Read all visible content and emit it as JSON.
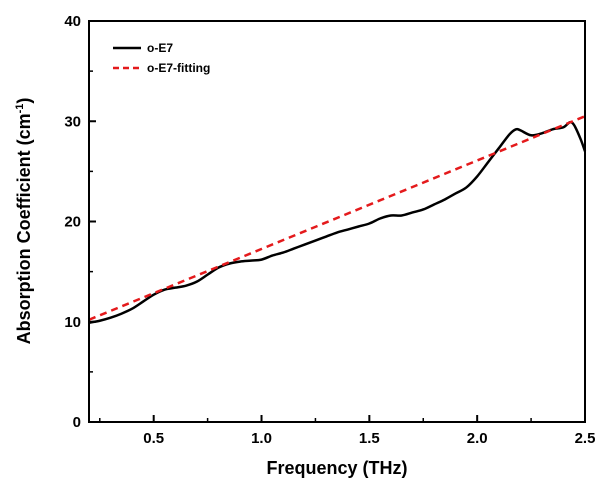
{
  "chart_data": {
    "type": "line",
    "xlabel": "Frequency (THz)",
    "ylabel_main": "Absorption Coefficient (cm",
    "ylabel_sup": "-1",
    "ylabel_close": ")",
    "xlim": [
      0.2,
      2.5
    ],
    "ylim": [
      0,
      40
    ],
    "x_ticks": [
      0.5,
      1.0,
      1.5,
      2.0,
      2.5
    ],
    "x_tick_labels": [
      "0.5",
      "1.0",
      "1.5",
      "2.0",
      "2.5"
    ],
    "y_ticks": [
      0,
      10,
      20,
      30,
      40
    ],
    "y_tick_labels": [
      "0",
      "10",
      "20",
      "30",
      "40"
    ],
    "grid": false,
    "legend_position": "top-left",
    "series": [
      {
        "name": "o-E7",
        "style": "solid",
        "color": "#000000",
        "x": [
          0.2,
          0.25,
          0.3,
          0.35,
          0.4,
          0.45,
          0.5,
          0.55,
          0.6,
          0.65,
          0.7,
          0.75,
          0.8,
          0.85,
          0.9,
          0.95,
          1.0,
          1.05,
          1.1,
          1.15,
          1.2,
          1.25,
          1.3,
          1.35,
          1.4,
          1.45,
          1.5,
          1.55,
          1.6,
          1.65,
          1.7,
          1.75,
          1.8,
          1.85,
          1.9,
          1.95,
          2.0,
          2.05,
          2.1,
          2.15,
          2.18,
          2.2,
          2.25,
          2.3,
          2.35,
          2.4,
          2.43,
          2.45,
          2.48,
          2.5
        ],
        "y": [
          9.9,
          10.1,
          10.4,
          10.8,
          11.3,
          12.0,
          12.7,
          13.2,
          13.4,
          13.6,
          14.0,
          14.7,
          15.4,
          15.8,
          16.0,
          16.1,
          16.2,
          16.6,
          16.9,
          17.3,
          17.7,
          18.1,
          18.5,
          18.9,
          19.2,
          19.5,
          19.8,
          20.3,
          20.6,
          20.6,
          20.9,
          21.2,
          21.7,
          22.2,
          22.8,
          23.4,
          24.5,
          25.9,
          27.3,
          28.7,
          29.2,
          29.1,
          28.6,
          28.8,
          29.2,
          29.4,
          29.9,
          29.6,
          28.2,
          27.0
        ]
      },
      {
        "name": "o-E7-fitting",
        "style": "dashed",
        "color": "#e41a1c",
        "x": [
          0.2,
          2.5
        ],
        "y": [
          10.2,
          30.5
        ]
      }
    ]
  }
}
